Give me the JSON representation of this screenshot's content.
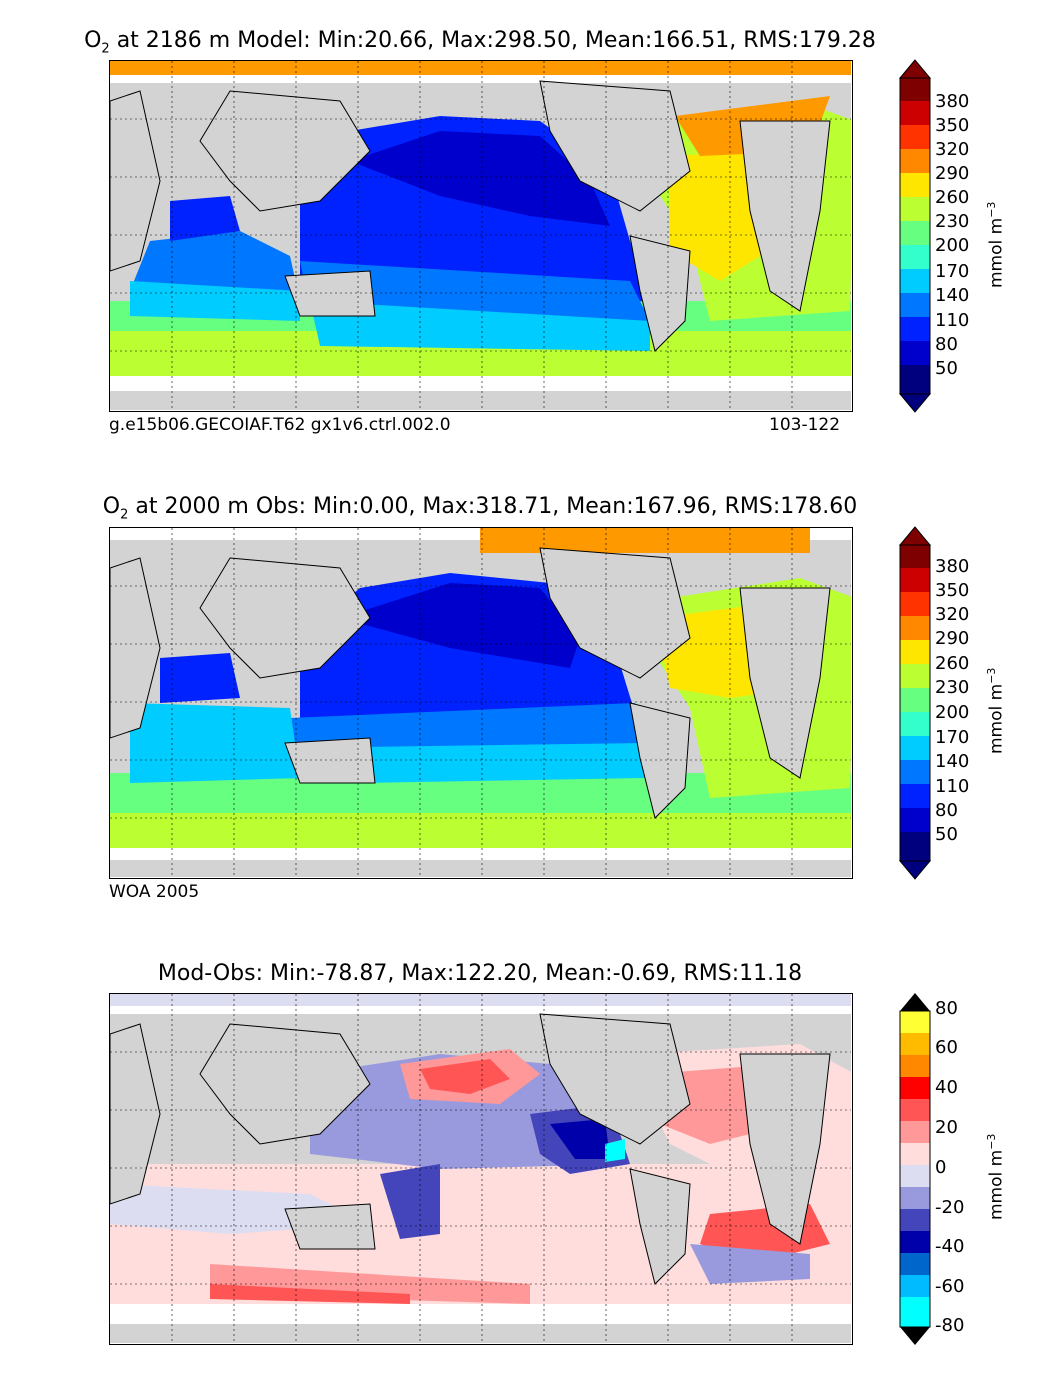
{
  "panels": [
    {
      "id": "model",
      "title_species": "O",
      "title_sub": "2",
      "title_rest": " at 2186 m Model: Min:20.66, Max:298.50, Mean:166.51, RMS:179.28",
      "caption_left": "g.e15b06.GECOIAF.T62 gx1v6.ctrl.002.0",
      "caption_right": "103-122",
      "colorbar_ticks": [
        "380",
        "350",
        "320",
        "290",
        "260",
        "230",
        "200",
        "170",
        "140",
        "110",
        "80",
        "50"
      ],
      "colorbar_unit": "mmol m",
      "colorbar_unit_exp": "−3"
    },
    {
      "id": "obs",
      "title_species": "O",
      "title_sub": "2",
      "title_rest": " at 2000 m Obs: Min:0.00, Max:318.71, Mean:167.96, RMS:178.60",
      "caption_left": "WOA 2005",
      "caption_right": "",
      "colorbar_ticks": [
        "380",
        "350",
        "320",
        "290",
        "260",
        "230",
        "200",
        "170",
        "140",
        "110",
        "80",
        "50"
      ],
      "colorbar_unit": "mmol m",
      "colorbar_unit_exp": "−3"
    },
    {
      "id": "diff",
      "title_species": "",
      "title_sub": "",
      "title_rest": "Mod-Obs: Min:-78.87, Max:122.20, Mean:-0.69, RMS:11.18",
      "caption_left": "",
      "caption_right": "",
      "colorbar_ticks": [
        "80",
        "60",
        "40",
        "20",
        "0",
        "-20",
        "-40",
        "-60",
        "-80"
      ],
      "colorbar_unit": "mmol m",
      "colorbar_unit_exp": "−3"
    }
  ],
  "colors": {
    "land": "#d3d3d3",
    "nodata": "#ffffff",
    "o2_scale": [
      "#00007f",
      "#0000cc",
      "#0022ff",
      "#0077ff",
      "#00ccff",
      "#33ffcc",
      "#66ff80",
      "#bbff33",
      "#ffe600",
      "#ff9900",
      "#ff5500",
      "#e60000",
      "#7f0000"
    ],
    "diff_scale": [
      "#00ffff",
      "#00bbff",
      "#0066cc",
      "#0000aa",
      "#4444bb",
      "#9999dd",
      "#ddddf2",
      "#ffdddd",
      "#ff9999",
      "#ff5555",
      "#ff0000",
      "#ff8800",
      "#ffbb00",
      "#ffff33"
    ]
  }
}
